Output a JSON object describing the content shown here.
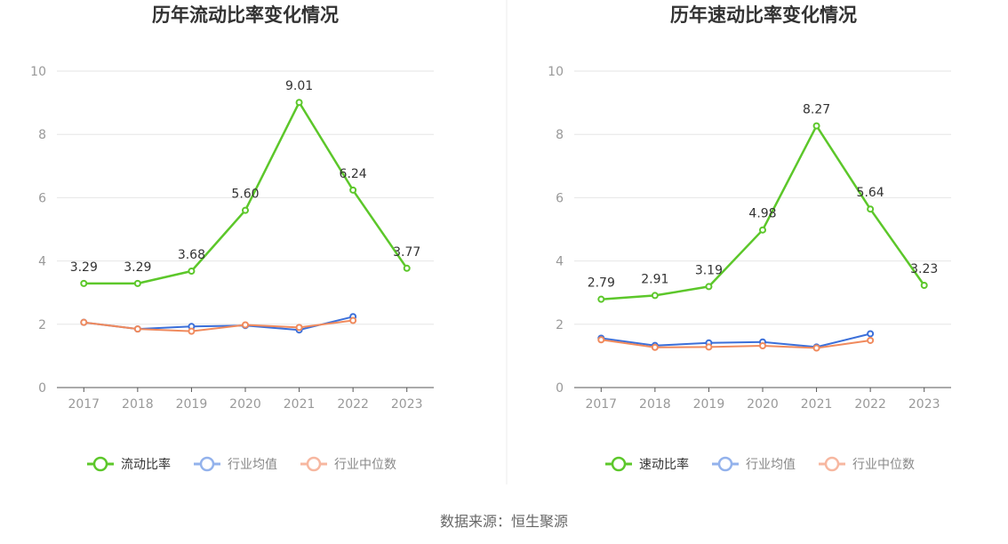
{
  "source_label": "数据来源：恒生聚源",
  "chart_data": [
    {
      "type": "line",
      "title": "历年流动比率变化情况",
      "categories": [
        "2017",
        "2018",
        "2019",
        "2020",
        "2021",
        "2022",
        "2023"
      ],
      "ylim": [
        0,
        10
      ],
      "yticks": [
        "0",
        "2",
        "4",
        "6",
        "8",
        "10"
      ],
      "series": [
        {
          "name": "流动比率",
          "color": "#5cc72a",
          "values": [
            3.29,
            3.29,
            3.68,
            5.6,
            9.01,
            6.24,
            3.77
          ],
          "labels": [
            "3.29",
            "3.29",
            "3.68",
            "5.60",
            "9.01",
            "6.24",
            "3.77"
          ]
        },
        {
          "name": "行业均值",
          "color": "#3b6fd9",
          "values": [
            2.06,
            1.85,
            1.93,
            1.96,
            1.82,
            2.24,
            null
          ]
        },
        {
          "name": "行业中位数",
          "color": "#f08a5d",
          "values": [
            2.06,
            1.85,
            1.78,
            1.98,
            1.9,
            2.12,
            null
          ]
        }
      ]
    },
    {
      "type": "line",
      "title": "历年速动比率变化情况",
      "categories": [
        "2017",
        "2018",
        "2019",
        "2020",
        "2021",
        "2022",
        "2023"
      ],
      "ylim": [
        0,
        10
      ],
      "yticks": [
        "0",
        "2",
        "4",
        "6",
        "8",
        "10"
      ],
      "series": [
        {
          "name": "速动比率",
          "color": "#5cc72a",
          "values": [
            2.79,
            2.91,
            3.19,
            4.98,
            8.27,
            5.64,
            3.23
          ],
          "labels": [
            "2.79",
            "2.91",
            "3.19",
            "4.98",
            "8.27",
            "5.64",
            "3.23"
          ]
        },
        {
          "name": "行业均值",
          "color": "#3b6fd9",
          "values": [
            1.56,
            1.33,
            1.41,
            1.44,
            1.28,
            1.7,
            null
          ]
        },
        {
          "name": "行业中位数",
          "color": "#f08a5d",
          "values": [
            1.51,
            1.27,
            1.28,
            1.32,
            1.25,
            1.49,
            null
          ]
        }
      ]
    }
  ]
}
